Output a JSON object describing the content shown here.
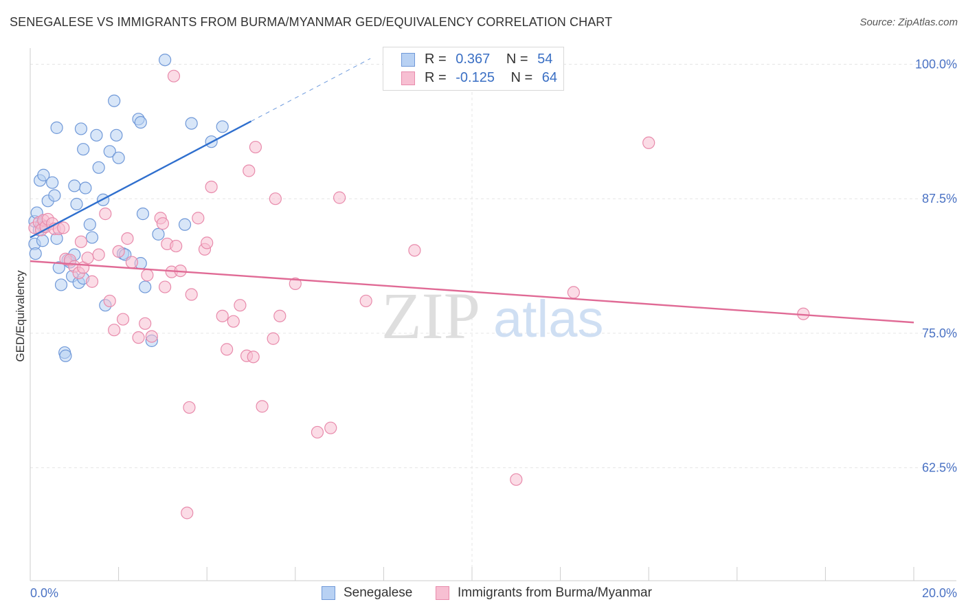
{
  "header": {
    "title": "SENEGALESE VS IMMIGRANTS FROM BURMA/MYANMAR GED/EQUIVALENCY CORRELATION CHART",
    "source": "Source: ZipAtlas.com"
  },
  "watermark": {
    "zip": "ZIP",
    "atlas": "atlas"
  },
  "colors": {
    "blue_fill": "#b8d1f3",
    "blue_stroke": "#6f98d8",
    "blue_line": "#2f6fce",
    "pink_fill": "#f7bfd2",
    "pink_stroke": "#e88aab",
    "pink_line": "#e06a95",
    "tick_label": "#4a72c4",
    "grid": "#e5e5e5"
  },
  "legend": {
    "rows": [
      {
        "r_label": "R =",
        "r_value": "0.367",
        "n_label": "N =",
        "n_value": "54",
        "color": "blue"
      },
      {
        "r_label": "R =",
        "r_value": "-0.125",
        "n_label": "N =",
        "n_value": "64",
        "color": "pink"
      }
    ]
  },
  "bottom_legend": [
    {
      "label": "Senegalese",
      "color": "blue"
    },
    {
      "label": "Immigrants from Burma/Myanmar",
      "color": "pink"
    }
  ],
  "chart_data": {
    "type": "scatter",
    "ylabel": "GED/Equivalency",
    "xlim": [
      0,
      20
    ],
    "ylim": [
      52,
      101.5
    ],
    "x_tick_labels": [
      {
        "x": 0,
        "label": "0.0%"
      },
      {
        "x": 20,
        "label": "20.0%"
      }
    ],
    "y_tick_labels": [
      {
        "y": 100.0,
        "label": "100.0%"
      },
      {
        "y": 87.5,
        "label": "87.5%"
      },
      {
        "y": 75.0,
        "label": "75.0%"
      },
      {
        "y": 62.5,
        "label": "62.5%"
      }
    ],
    "grid": true,
    "series": [
      {
        "name": "Senegalese",
        "color": "blue",
        "trend": {
          "x0": 0,
          "y0": 83.9,
          "x1": 5.0,
          "y1": 94.7,
          "dash_to_x": 7.7
        },
        "points": [
          [
            0.1,
            85.4
          ],
          [
            0.15,
            86.2
          ],
          [
            0.2,
            84.6
          ],
          [
            0.1,
            83.3
          ],
          [
            0.12,
            82.4
          ],
          [
            0.25,
            85.1
          ],
          [
            0.3,
            84.9
          ],
          [
            0.28,
            83.6
          ],
          [
            0.22,
            89.2
          ],
          [
            0.3,
            89.7
          ],
          [
            0.4,
            87.3
          ],
          [
            0.5,
            89.0
          ],
          [
            0.55,
            87.8
          ],
          [
            0.6,
            83.8
          ],
          [
            0.65,
            81.1
          ],
          [
            0.7,
            79.5
          ],
          [
            0.78,
            73.2
          ],
          [
            0.8,
            72.9
          ],
          [
            0.85,
            81.8
          ],
          [
            0.9,
            81.6
          ],
          [
            0.95,
            80.3
          ],
          [
            1.0,
            82.3
          ],
          [
            1.0,
            88.7
          ],
          [
            1.05,
            87.0
          ],
          [
            1.1,
            79.7
          ],
          [
            1.15,
            94.0
          ],
          [
            1.2,
            92.1
          ],
          [
            1.25,
            88.5
          ],
          [
            1.35,
            85.1
          ],
          [
            1.4,
            83.9
          ],
          [
            1.5,
            93.4
          ],
          [
            1.55,
            90.4
          ],
          [
            1.65,
            87.4
          ],
          [
            1.7,
            77.6
          ],
          [
            1.8,
            91.9
          ],
          [
            1.9,
            96.6
          ],
          [
            1.95,
            93.4
          ],
          [
            2.0,
            91.3
          ],
          [
            2.1,
            82.4
          ],
          [
            2.15,
            82.3
          ],
          [
            2.45,
            94.9
          ],
          [
            2.5,
            94.6
          ],
          [
            2.55,
            86.1
          ],
          [
            2.5,
            81.5
          ],
          [
            2.6,
            79.3
          ],
          [
            2.75,
            74.3
          ],
          [
            2.9,
            84.2
          ],
          [
            3.05,
            100.4
          ],
          [
            3.5,
            85.1
          ],
          [
            3.65,
            94.5
          ],
          [
            4.1,
            92.8
          ],
          [
            4.35,
            94.2
          ],
          [
            0.6,
            94.1
          ],
          [
            1.2,
            80.1
          ]
        ]
      },
      {
        "name": "Immigrants from Burma/Myanmar",
        "color": "pink",
        "trend": {
          "x0": 0,
          "y0": 81.7,
          "x1": 20.0,
          "y1": 76.0
        },
        "points": [
          [
            0.1,
            84.8
          ],
          [
            0.2,
            85.3
          ],
          [
            0.25,
            84.6
          ],
          [
            0.3,
            85.5
          ],
          [
            0.35,
            84.9
          ],
          [
            0.4,
            85.6
          ],
          [
            0.5,
            85.2
          ],
          [
            0.55,
            84.7
          ],
          [
            0.65,
            84.7
          ],
          [
            0.75,
            84.8
          ],
          [
            0.8,
            81.9
          ],
          [
            0.9,
            81.8
          ],
          [
            1.0,
            81.2
          ],
          [
            1.1,
            80.6
          ],
          [
            1.15,
            83.5
          ],
          [
            1.2,
            81.1
          ],
          [
            1.3,
            82.0
          ],
          [
            1.4,
            79.8
          ],
          [
            1.55,
            82.3
          ],
          [
            1.7,
            86.1
          ],
          [
            1.8,
            78.0
          ],
          [
            1.9,
            75.3
          ],
          [
            2.0,
            82.6
          ],
          [
            2.1,
            76.3
          ],
          [
            2.2,
            83.8
          ],
          [
            2.3,
            81.6
          ],
          [
            2.45,
            74.6
          ],
          [
            2.6,
            75.9
          ],
          [
            2.65,
            80.4
          ],
          [
            2.75,
            74.7
          ],
          [
            2.95,
            85.7
          ],
          [
            3.0,
            85.2
          ],
          [
            3.05,
            79.3
          ],
          [
            3.1,
            83.3
          ],
          [
            3.2,
            80.7
          ],
          [
            3.3,
            83.1
          ],
          [
            3.4,
            80.8
          ],
          [
            3.6,
            68.1
          ],
          [
            3.65,
            78.6
          ],
          [
            3.8,
            85.7
          ],
          [
            3.95,
            82.8
          ],
          [
            4.0,
            83.4
          ],
          [
            4.1,
            88.6
          ],
          [
            4.35,
            76.6
          ],
          [
            4.45,
            73.5
          ],
          [
            4.6,
            76.1
          ],
          [
            4.75,
            77.6
          ],
          [
            4.9,
            72.9
          ],
          [
            4.95,
            90.1
          ],
          [
            5.05,
            72.8
          ],
          [
            5.1,
            92.3
          ],
          [
            5.25,
            68.2
          ],
          [
            5.5,
            74.5
          ],
          [
            5.55,
            87.5
          ],
          [
            5.65,
            76.6
          ],
          [
            6.0,
            79.6
          ],
          [
            6.5,
            65.8
          ],
          [
            6.8,
            66.2
          ],
          [
            7.0,
            87.6
          ],
          [
            7.6,
            78.0
          ],
          [
            8.7,
            82.7
          ],
          [
            11.0,
            61.4
          ],
          [
            12.3,
            78.8
          ],
          [
            14.0,
            92.7
          ]
        ],
        "extra_points": [
          [
            3.25,
            98.9
          ],
          [
            17.5,
            76.8
          ],
          [
            3.55,
            58.3
          ]
        ]
      }
    ]
  }
}
